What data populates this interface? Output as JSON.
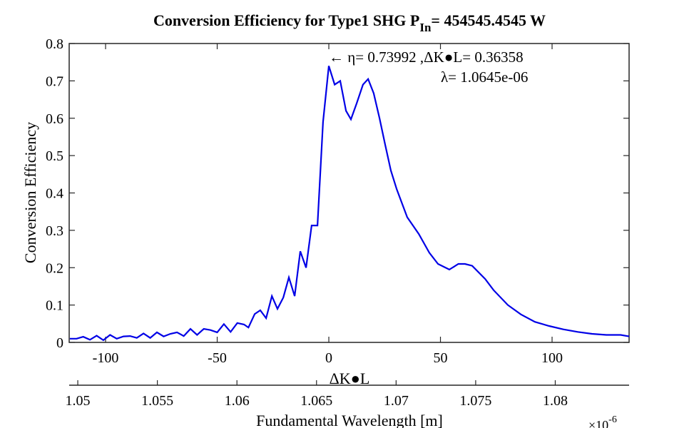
{
  "chart_data": {
    "type": "line",
    "title": "Conversion Efficiency for Type1 SHG P",
    "title_subscript": "In",
    "title_suffix": "= 454545.4545 W",
    "xlabel": "ΔK●L",
    "ylabel": "Conversion Efficiency",
    "x2label": "Fundamental Wavelength [m]",
    "x2_multiplier": "×10",
    "x2_exponent": "-6",
    "annotations": [
      "← η= 0.73992 ,ΔK●L= 0.36358",
      "λ= 1.0645e-06"
    ],
    "xlim": [
      -116.3,
      134.5
    ],
    "xticks": [
      -100,
      -50,
      0,
      50,
      100
    ],
    "ylim": [
      0,
      0.8
    ],
    "yticks": [
      0,
      0.1,
      0.2,
      0.3,
      0.4,
      0.5,
      0.6,
      0.7,
      0.8
    ],
    "x2lim": [
      1.04946,
      1.08464
    ],
    "x2ticks": [
      1.05,
      1.055,
      1.06,
      1.065,
      1.07,
      1.075,
      1.08
    ],
    "series": [
      {
        "color": "#0000e6",
        "x": [
          -116,
          -113,
          -110,
          -107,
          -104,
          -101,
          -98,
          -95,
          -92,
          -89,
          -86,
          -83,
          -80,
          -77,
          -74,
          -71,
          -68,
          -65,
          -62,
          -59,
          -56,
          -53,
          -50,
          -47,
          -44,
          -41,
          -38,
          -36,
          -33.2,
          -30.7,
          -28.1,
          -25.5,
          -23,
          -20.4,
          -17.9,
          -15.3,
          -12.8,
          -10.2,
          -7.7,
          -5.1,
          -2.6,
          0,
          2.6,
          5.1,
          7.7,
          9.9,
          12.5,
          15.3,
          17.6,
          20.1,
          22.7,
          25.2,
          27.8,
          30.4,
          35.1,
          40.3,
          45,
          48.9,
          54,
          58,
          61,
          64.2,
          70,
          73.8,
          80.2,
          86,
          92.3,
          98.7,
          105,
          111.5,
          117.9,
          124.3,
          130.7,
          134.5
        ],
        "values": [
          0.01,
          0.01,
          0.015,
          0.007,
          0.018,
          0.006,
          0.02,
          0.01,
          0.016,
          0.017,
          0.012,
          0.024,
          0.012,
          0.027,
          0.016,
          0.023,
          0.027,
          0.017,
          0.036,
          0.02,
          0.036,
          0.033,
          0.027,
          0.049,
          0.028,
          0.052,
          0.048,
          0.04,
          0.076,
          0.086,
          0.065,
          0.124,
          0.09,
          0.12,
          0.174,
          0.124,
          0.244,
          0.2,
          0.313,
          0.313,
          0.59,
          0.74,
          0.69,
          0.7,
          0.62,
          0.597,
          0.64,
          0.69,
          0.705,
          0.667,
          0.6,
          0.53,
          0.46,
          0.41,
          0.335,
          0.29,
          0.24,
          0.21,
          0.195,
          0.21,
          0.21,
          0.205,
          0.17,
          0.14,
          0.1,
          0.075,
          0.055,
          0.044,
          0.035,
          0.028,
          0.023,
          0.02,
          0.02,
          0.016
        ]
      }
    ]
  }
}
